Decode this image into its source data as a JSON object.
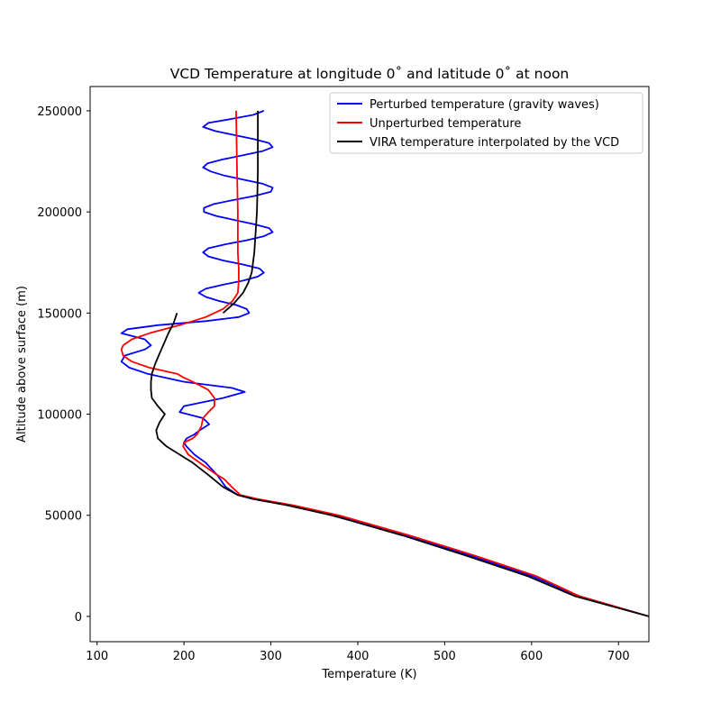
{
  "chart_data": {
    "type": "line",
    "title": "VCD Temperature at longitude 0˚ and latitude 0˚ at noon",
    "xlabel": "Temperature (K)",
    "ylabel": "Altitude above surface (m)",
    "xlim": [
      92,
      735
    ],
    "ylim": [
      -12500,
      262000
    ],
    "xticks": [
      100,
      200,
      300,
      400,
      500,
      600,
      700
    ],
    "yticks": [
      0,
      50000,
      100000,
      150000,
      200000,
      250000
    ],
    "grid": false,
    "legend_position": "top-right",
    "series": [
      {
        "name": "Perturbed temperature (gravity waves)",
        "color": "#0000ff",
        "y": [
          0,
          10000,
          20000,
          30000,
          40000,
          50000,
          55000,
          58000,
          60000,
          64000,
          70000,
          76000,
          80000,
          84000,
          86000,
          88000,
          90000,
          92000,
          95000,
          98000,
          101000,
          104000,
          108000,
          111000,
          113000,
          116000,
          120000,
          123000,
          126000,
          129000,
          132000,
          134000,
          137000,
          140000,
          142000,
          144000,
          146000,
          148000,
          150000,
          152000,
          154000,
          156000,
          158000,
          160000,
          162000,
          164000,
          166000,
          168000,
          170000,
          172000,
          174000,
          176000,
          178000,
          180000,
          182000,
          184000,
          186000,
          188000,
          190000,
          192000,
          194000,
          196000,
          198000,
          200000,
          202000,
          204000,
          206000,
          208000,
          210000,
          212000,
          214000,
          216000,
          218000,
          220000,
          222000,
          224000,
          226000,
          228000,
          230000,
          232000,
          234000,
          236000,
          238000,
          240000,
          242000,
          244000,
          246000,
          248000,
          250000
        ],
        "values": [
          735,
          655,
          600,
          530,
          455,
          375,
          320,
          280,
          262,
          248,
          238,
          225,
          212,
          203,
          200,
          203,
          212,
          218,
          229,
          222,
          195,
          200,
          245,
          270,
          255,
          200,
          158,
          137,
          128,
          132,
          155,
          162,
          155,
          128,
          135,
          170,
          225,
          263,
          275,
          272,
          260,
          240,
          225,
          217,
          225,
          245,
          268,
          285,
          292,
          287,
          268,
          245,
          228,
          222,
          228,
          248,
          272,
          292,
          302,
          298,
          280,
          258,
          237,
          223,
          223,
          235,
          258,
          282,
          300,
          302,
          290,
          268,
          246,
          231,
          222,
          227,
          245,
          268,
          290,
          302,
          298,
          280,
          258,
          236,
          222,
          228,
          255,
          280,
          292
        ]
      },
      {
        "name": "Unperturbed temperature",
        "color": "#ff0000",
        "y": [
          0,
          10000,
          20000,
          30000,
          40000,
          50000,
          55000,
          58000,
          60000,
          64000,
          68000,
          70000,
          76000,
          80000,
          84000,
          86000,
          88000,
          90000,
          94000,
          98000,
          101000,
          104000,
          108000,
          112000,
          116000,
          118000,
          120000,
          123000,
          126000,
          129000,
          132000,
          134000,
          137000,
          140000,
          144000,
          148000,
          152000,
          156000,
          160000,
          166000,
          172000,
          180000,
          200000,
          220000,
          250000
        ],
        "values": [
          735,
          655,
          605,
          535,
          460,
          378,
          325,
          285,
          265,
          255,
          246,
          238,
          218,
          205,
          199,
          200,
          210,
          215,
          220,
          222,
          228,
          235,
          235,
          228,
          210,
          200,
          192,
          160,
          140,
          130,
          128,
          130,
          140,
          160,
          195,
          225,
          245,
          256,
          262,
          263,
          263,
          262,
          262,
          261,
          260
        ]
      },
      {
        "name": "VIRA temperature interpolated by the VCD",
        "color": "#000000",
        "y": [
          0,
          10000,
          20000,
          30000,
          40000,
          50000,
          55000,
          58000,
          60000,
          64000,
          70000,
          76000,
          80000,
          84000,
          88000,
          92000,
          96000,
          100000,
          104000,
          108000,
          112000,
          116000,
          120000,
          125000,
          130000,
          135000,
          140000,
          145000,
          150000,
          146000,
          150000,
          155000,
          160000,
          165000,
          170000,
          180000,
          200000,
          220000,
          240000,
          250000
        ],
        "values": [
          735,
          650,
          595,
          525,
          452,
          370,
          318,
          280,
          262,
          245,
          228,
          210,
          195,
          180,
          170,
          168,
          172,
          178,
          170,
          163,
          162,
          162,
          163,
          167,
          172,
          177,
          182,
          188,
          192,
          null,
          245,
          258,
          268,
          274,
          278,
          281,
          284,
          285,
          285,
          285
        ]
      }
    ]
  }
}
